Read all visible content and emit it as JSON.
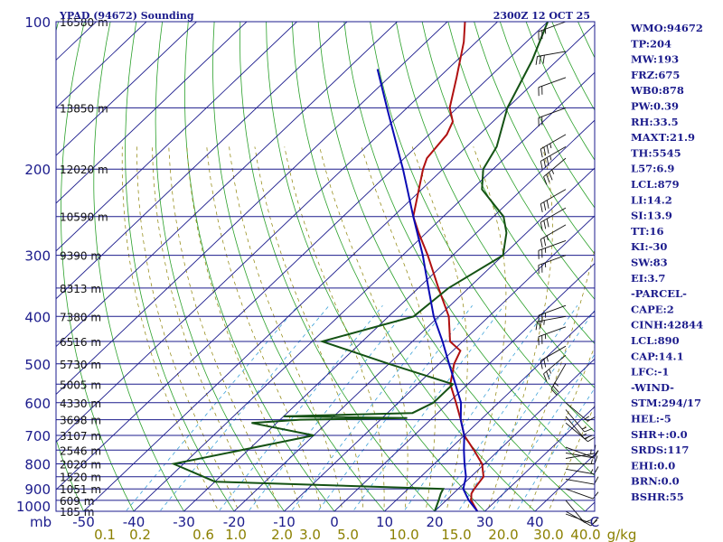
{
  "title_left": "YPAD (94672) Sounding",
  "title_right": "2300Z 12 OCT 25",
  "colors": {
    "isobar": "#1b1b8c",
    "isotherm": "#1b1b8c",
    "dry_adiabat": "#2aa02a",
    "moist_adiabat": "#8b8000",
    "mixing_ratio": "#3aa0d8",
    "temperature": "#b01010",
    "dewpoint": "#145214",
    "parcel": "#0a0ab4",
    "wind_barb": "#111111"
  },
  "chart_data": {
    "type": "line",
    "chart_kind": "skew-T log-P",
    "x_axis": {
      "unit_label": "C",
      "ticks": [
        -50,
        -40,
        -30,
        -20,
        -10,
        0,
        10,
        20,
        30,
        40
      ],
      "tick_labels": [
        "-50",
        "-40",
        "-30",
        "-20",
        "-10",
        "0",
        "10",
        "20",
        "30",
        "40"
      ],
      "range": [
        -50,
        50
      ]
    },
    "y_axis": {
      "unit_label": "mb",
      "scale": "log",
      "range": [
        1000,
        100
      ],
      "ticks": [
        100,
        200,
        300,
        400,
        500,
        600,
        700,
        800,
        900,
        1000
      ],
      "tick_labels": [
        "100",
        "200",
        "300",
        "400",
        "500",
        "600",
        "700",
        "800",
        "900",
        "1000"
      ]
    },
    "height_labels": [
      {
        "p": 100,
        "label": "16580 m"
      },
      {
        "p": 150,
        "label": "13850 m"
      },
      {
        "p": 200,
        "label": "12020 m"
      },
      {
        "p": 250,
        "label": "10590 m"
      },
      {
        "p": 300,
        "label": "9390 m"
      },
      {
        "p": 350,
        "label": "8313 m"
      },
      {
        "p": 400,
        "label": "7380 m"
      },
      {
        "p": 450,
        "label": "6516 m"
      },
      {
        "p": 500,
        "label": "5730 m"
      },
      {
        "p": 550,
        "label": "5005 m"
      },
      {
        "p": 600,
        "label": "4330 m"
      },
      {
        "p": 650,
        "label": "3698 m"
      },
      {
        "p": 700,
        "label": "3107 m"
      },
      {
        "p": 750,
        "label": "2546 m"
      },
      {
        "p": 800,
        "label": "2020 m"
      },
      {
        "p": 850,
        "label": "1520 m"
      },
      {
        "p": 900,
        "label": "1051 m"
      },
      {
        "p": 950,
        "label": "609 m"
      },
      {
        "p": 1000,
        "label": "185 m"
      }
    ],
    "mixing_ratio_labels": [
      "0.1",
      "0.2",
      "0.6",
      "1.0",
      "2.0",
      "3.0",
      "5.0",
      "10.0",
      "15.0",
      "20.0",
      "30.0",
      "40.0"
    ],
    "mixing_ratio_unit": "g/kg",
    "series": [
      {
        "key": "temperature",
        "points": [
          [
            1013,
            28.8
          ],
          [
            1000,
            28.5
          ],
          [
            950,
            25.0
          ],
          [
            920,
            23.6
          ],
          [
            900,
            23.2
          ],
          [
            850,
            22.5
          ],
          [
            800,
            19.5
          ],
          [
            750,
            15.0
          ],
          [
            700,
            10.0
          ],
          [
            650,
            6.0
          ],
          [
            600,
            1.5
          ],
          [
            550,
            -3.5
          ],
          [
            500,
            -7.0
          ],
          [
            470,
            -8.5
          ],
          [
            450,
            -12.5
          ],
          [
            400,
            -18.0
          ],
          [
            350,
            -26.0
          ],
          [
            300,
            -35.0
          ],
          [
            270,
            -41.5
          ],
          [
            250,
            -46.0
          ],
          [
            200,
            -54.0
          ],
          [
            190,
            -55.5
          ],
          [
            170,
            -56.5
          ],
          [
            160,
            -58.0
          ],
          [
            150,
            -61.5
          ],
          [
            130,
            -66.5
          ],
          [
            110,
            -72.5
          ],
          [
            100,
            -76.5
          ]
        ]
      },
      {
        "key": "dewpoint",
        "points": [
          [
            1013,
            22.0
          ],
          [
            1000,
            20.0
          ],
          [
            950,
            18.5
          ],
          [
            920,
            17.5
          ],
          [
            900,
            17.0
          ],
          [
            870,
            -30.0
          ],
          [
            800,
            -42.0
          ],
          [
            700,
            -20.0
          ],
          [
            660,
            -35.0
          ],
          [
            650,
            -26.0
          ],
          [
            645,
            -5.0
          ],
          [
            640,
            -30.0
          ],
          [
            630,
            -5.0
          ],
          [
            600,
            -3.0
          ],
          [
            550,
            -3.0
          ],
          [
            500,
            -20.0
          ],
          [
            450,
            -38.0
          ],
          [
            400,
            -25.0
          ],
          [
            350,
            -24.0
          ],
          [
            300,
            -20.0
          ],
          [
            270,
            -24.0
          ],
          [
            250,
            -28.0
          ],
          [
            220,
            -38.0
          ],
          [
            200,
            -42.0
          ],
          [
            180,
            -44.0
          ],
          [
            150,
            -50.0
          ],
          [
            120,
            -55.0
          ],
          [
            100,
            -60.0
          ]
        ]
      },
      {
        "key": "parcel",
        "points": [
          [
            1000,
            28.5
          ],
          [
            950,
            24.5
          ],
          [
            900,
            21.0
          ],
          [
            850,
            19.0
          ],
          [
            800,
            16.0
          ],
          [
            750,
            13.0
          ],
          [
            700,
            10.0
          ],
          [
            650,
            6.0
          ],
          [
            600,
            2.5
          ],
          [
            550,
            -2.5
          ],
          [
            500,
            -8.0
          ],
          [
            450,
            -14.0
          ],
          [
            400,
            -21.0
          ],
          [
            350,
            -28.0
          ],
          [
            300,
            -36.0
          ],
          [
            250,
            -46.0
          ],
          [
            200,
            -58.0
          ],
          [
            150,
            -74.0
          ],
          [
            125,
            -84.0
          ]
        ]
      }
    ],
    "wind_barbs": [
      {
        "p": 1013,
        "dir": 110,
        "spd": 10
      },
      {
        "p": 1000,
        "dir": 120,
        "spd": 10
      },
      {
        "p": 950,
        "dir": 140,
        "spd": 10
      },
      {
        "p": 900,
        "dir": 110,
        "spd": 10
      },
      {
        "p": 860,
        "dir": 100,
        "spd": 10
      },
      {
        "p": 820,
        "dir": 100,
        "spd": 15
      },
      {
        "p": 800,
        "dir": 90,
        "spd": 15
      },
      {
        "p": 780,
        "dir": 80,
        "spd": 15
      },
      {
        "p": 760,
        "dir": 100,
        "spd": 10
      },
      {
        "p": 740,
        "dir": 110,
        "spd": 10
      },
      {
        "p": 660,
        "dir": 130,
        "spd": 15
      },
      {
        "p": 640,
        "dir": 140,
        "spd": 15
      },
      {
        "p": 620,
        "dir": 140,
        "spd": 15
      },
      {
        "p": 600,
        "dir": 130,
        "spd": 15
      },
      {
        "p": 500,
        "dir": 210,
        "spd": 25
      },
      {
        "p": 480,
        "dir": 230,
        "spd": 25
      },
      {
        "p": 460,
        "dir": 240,
        "spd": 25
      },
      {
        "p": 420,
        "dir": 250,
        "spd": 25
      },
      {
        "p": 400,
        "dir": 260,
        "spd": 25
      },
      {
        "p": 380,
        "dir": 250,
        "spd": 25
      },
      {
        "p": 300,
        "dir": 250,
        "spd": 25
      },
      {
        "p": 280,
        "dir": 250,
        "spd": 25
      },
      {
        "p": 260,
        "dir": 240,
        "spd": 25
      },
      {
        "p": 240,
        "dir": 240,
        "spd": 30
      },
      {
        "p": 220,
        "dir": 240,
        "spd": 30
      },
      {
        "p": 190,
        "dir": 230,
        "spd": 35
      },
      {
        "p": 180,
        "dir": 240,
        "spd": 35
      },
      {
        "p": 170,
        "dir": 240,
        "spd": 35
      },
      {
        "p": 150,
        "dir": 250,
        "spd": 20
      },
      {
        "p": 130,
        "dir": 250,
        "spd": 20
      },
      {
        "p": 115,
        "dir": 260,
        "spd": 30
      },
      {
        "p": 100,
        "dir": 250,
        "spd": 25
      }
    ]
  },
  "indices": [
    "WMO:94672",
    "TP:204",
    "MW:193",
    "FRZ:675",
    "WB0:878",
    "PW:0.39",
    "RH:33.5",
    "MAXT:21.9",
    "TH:5545",
    "L57:6.9",
    "LCL:879",
    "LI:14.2",
    "SI:13.9",
    "TT:16",
    "KI:-30",
    "SW:83",
    "EI:3.7",
    "-PARCEL-",
    "CAPE:2",
    "CINH:42844",
    "LCL:890",
    "CAP:14.1",
    "LFC:-1",
    "-WIND-",
    "STM:294/17",
    "HEL:-5",
    "SHR+:0.0",
    "SRDS:117",
    "EHI:0.0",
    "BRN:0.0",
    "BSHR:55"
  ]
}
